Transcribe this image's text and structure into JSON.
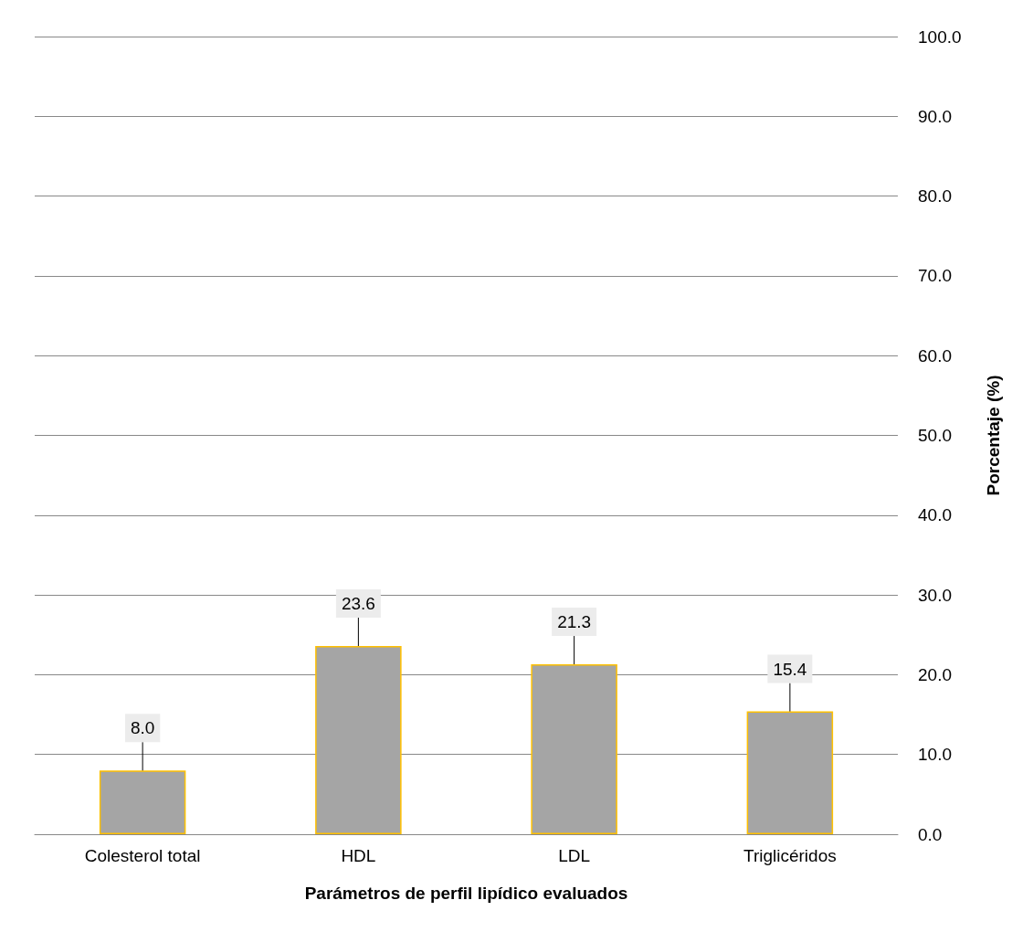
{
  "chart_data": {
    "type": "bar",
    "xlabel": "Parámetros de perfil lipídico evaluados",
    "ylabel": "Porcentaje (%)",
    "categories": [
      "Colesterol total",
      "HDL",
      "LDL",
      "Triglicéridos"
    ],
    "values": [
      8.0,
      23.6,
      21.3,
      15.4
    ],
    "value_labels": [
      "8.0",
      "23.6",
      "21.3",
      "15.4"
    ],
    "color": "#a5a5a5",
    "ylim": [
      0,
      100
    ],
    "yticks": [
      {
        "value": 0,
        "label": "0.0"
      },
      {
        "value": 10,
        "label": "10.0"
      },
      {
        "value": 20,
        "label": "20.0"
      },
      {
        "value": 30,
        "label": "30.0"
      },
      {
        "value": 40,
        "label": "40.0"
      },
      {
        "value": 50,
        "label": "50.0"
      },
      {
        "value": 60,
        "label": "60.0"
      },
      {
        "value": 70,
        "label": "70.0"
      },
      {
        "value": 80,
        "label": "80.0"
      },
      {
        "value": 90,
        "label": "90.0"
      },
      {
        "value": 100,
        "label": "100.0"
      }
    ],
    "grid": "y"
  }
}
